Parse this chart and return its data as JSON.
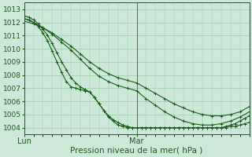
{
  "background_color": "#cce8d8",
  "plot_bg_color": "#cce8d8",
  "grid_color": "#99ccb0",
  "line_color": "#1a5c1a",
  "marker": "+",
  "xlabel": "Pression niveau de la mer( hPa )",
  "xlabel_color": "#1a5c1a",
  "ytick_color": "#1a5c1a",
  "xtick_color": "#1a5c1a",
  "ylim": [
    1003.5,
    1013.5
  ],
  "xlim": [
    0,
    48
  ],
  "yticks": [
    1004,
    1005,
    1006,
    1007,
    1008,
    1009,
    1010,
    1011,
    1012,
    1013
  ],
  "xtick_positions": [
    0,
    24
  ],
  "xtick_labels": [
    "Lun",
    "Mar"
  ],
  "mar_line_x": 24,
  "lines": [
    {
      "x": [
        0,
        1,
        2,
        3,
        4,
        5,
        6,
        7,
        8,
        9,
        10,
        11,
        12,
        13,
        14,
        15,
        16,
        17,
        18,
        19,
        20,
        21,
        22,
        23,
        24,
        25,
        26,
        27,
        28,
        29,
        30,
        31,
        32,
        33,
        34,
        35,
        36,
        37,
        38,
        39,
        40,
        41,
        42,
        43,
        44,
        45,
        46,
        47,
        48
      ],
      "y": [
        1012.3,
        1012.2,
        1012.0,
        1011.7,
        1011.2,
        1010.6,
        1009.8,
        1009.0,
        1008.2,
        1007.5,
        1007.1,
        1007.0,
        1006.9,
        1006.8,
        1006.7,
        1006.3,
        1005.8,
        1005.3,
        1004.9,
        1004.6,
        1004.4,
        1004.2,
        1004.1,
        1004.0,
        1004.0,
        1004.0,
        1004.0,
        1004.0,
        1004.0,
        1004.0,
        1004.0,
        1004.0,
        1004.0,
        1004.0,
        1004.0,
        1004.0,
        1004.0,
        1004.0,
        1004.0,
        1004.0,
        1004.0,
        1004.0,
        1004.0,
        1004.0,
        1004.1,
        1004.1,
        1004.2,
        1004.3,
        1004.4
      ]
    },
    {
      "x": [
        0,
        1,
        2,
        3,
        4,
        5,
        6,
        7,
        8,
        9,
        10,
        11,
        12,
        13,
        14,
        15,
        16,
        17,
        18,
        19,
        20,
        21,
        22,
        23,
        24,
        25,
        26,
        27,
        28,
        29,
        30,
        31,
        32,
        33,
        34,
        35,
        36,
        37,
        38,
        39,
        40,
        41,
        42,
        43,
        44,
        45,
        46,
        47,
        48
      ],
      "y": [
        1012.5,
        1012.4,
        1012.2,
        1011.9,
        1011.5,
        1011.0,
        1010.4,
        1009.7,
        1009.0,
        1008.4,
        1007.8,
        1007.4,
        1007.1,
        1006.9,
        1006.7,
        1006.3,
        1005.8,
        1005.3,
        1004.8,
        1004.5,
        1004.2,
        1004.1,
        1004.0,
        1004.0,
        1004.0,
        1004.0,
        1004.0,
        1004.0,
        1004.0,
        1004.0,
        1004.0,
        1004.0,
        1004.0,
        1004.0,
        1004.0,
        1004.0,
        1004.0,
        1004.0,
        1004.0,
        1004.0,
        1004.0,
        1004.0,
        1004.0,
        1004.1,
        1004.2,
        1004.3,
        1004.5,
        1004.7,
        1004.9
      ]
    },
    {
      "x": [
        0,
        2,
        4,
        6,
        8,
        10,
        12,
        14,
        16,
        18,
        20,
        22,
        24,
        26,
        28,
        30,
        32,
        34,
        36,
        38,
        40,
        42,
        44,
        46,
        48
      ],
      "y": [
        1012.3,
        1012.0,
        1011.6,
        1011.1,
        1010.5,
        1009.9,
        1009.2,
        1008.5,
        1007.9,
        1007.5,
        1007.2,
        1007.0,
        1006.8,
        1006.2,
        1005.7,
        1005.2,
        1004.8,
        1004.5,
        1004.3,
        1004.2,
        1004.2,
        1004.3,
        1004.5,
        1004.8,
        1005.2
      ]
    },
    {
      "x": [
        0,
        2,
        4,
        6,
        8,
        10,
        12,
        14,
        16,
        18,
        20,
        22,
        24,
        26,
        28,
        30,
        32,
        34,
        36,
        38,
        40,
        42,
        44,
        46,
        48
      ],
      "y": [
        1012.1,
        1011.9,
        1011.6,
        1011.2,
        1010.7,
        1010.2,
        1009.6,
        1009.0,
        1008.5,
        1008.1,
        1007.8,
        1007.6,
        1007.4,
        1007.0,
        1006.6,
        1006.2,
        1005.8,
        1005.5,
        1005.2,
        1005.0,
        1004.9,
        1004.9,
        1005.0,
        1005.2,
        1005.6
      ]
    }
  ]
}
